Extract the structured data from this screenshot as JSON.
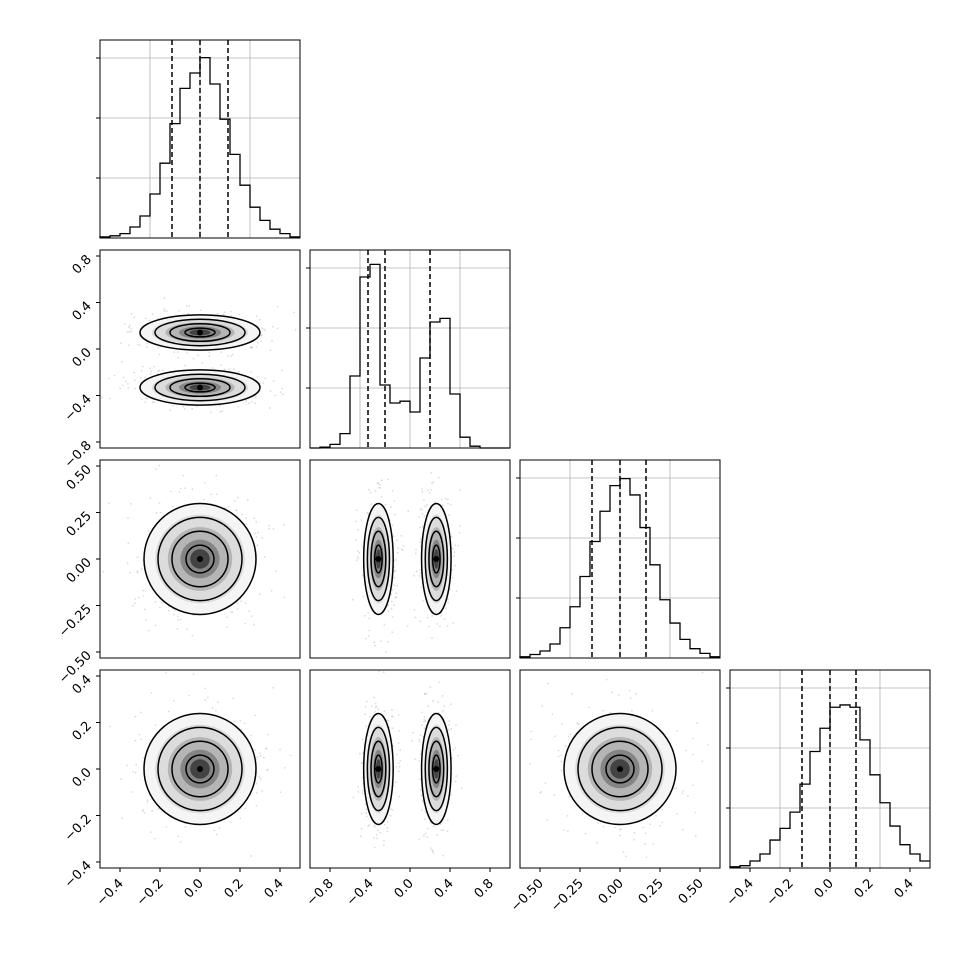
{
  "figure": {
    "background": "#ffffff",
    "grid_color": "#b0b0b0",
    "line_color": "#000000"
  },
  "chart_data": [
    {
      "type": "histogram",
      "panel": "diag-0",
      "bins": [
        -0.5,
        -0.45,
        -0.4,
        -0.35,
        -0.3,
        -0.25,
        -0.2,
        -0.15,
        -0.1,
        -0.05,
        0.0,
        0.05,
        0.1,
        0.15,
        0.2,
        0.25,
        0.3,
        0.35,
        0.4,
        0.45,
        0.5
      ],
      "counts": [
        0.5,
        1,
        2,
        5,
        10,
        20,
        34,
        52,
        68,
        75,
        82,
        70,
        54,
        38,
        24,
        14,
        8,
        4,
        2,
        0.5
      ],
      "ylim": [
        0,
        90
      ],
      "quantile_lines": [
        -0.14,
        0.0,
        0.14
      ],
      "grid": true
    },
    {
      "type": "histogram",
      "panel": "diag-1",
      "bins": [
        -1.1,
        -1.0,
        -0.9,
        -0.8,
        -0.7,
        -0.6,
        -0.5,
        -0.4,
        -0.3,
        -0.2,
        -0.1,
        0.0,
        0.1,
        0.2,
        0.3,
        0.4,
        0.5,
        0.6,
        0.7,
        0.8,
        0.9
      ],
      "counts": [
        0,
        0.5,
        2,
        8,
        40,
        95,
        102,
        35,
        25,
        26,
        20,
        50,
        70,
        72,
        30,
        6,
        1,
        0,
        0,
        0
      ],
      "ylim": [
        0,
        110
      ],
      "quantile_lines": [
        -0.52,
        -0.35,
        0.1
      ],
      "grid": true
    },
    {
      "type": "histogram",
      "panel": "diag-2",
      "bins": [
        -0.5,
        -0.45,
        -0.4,
        -0.35,
        -0.3,
        -0.25,
        -0.2,
        -0.15,
        -0.1,
        -0.05,
        0.0,
        0.05,
        0.1,
        0.15,
        0.2,
        0.25,
        0.3,
        0.35,
        0.4,
        0.45,
        0.5
      ],
      "counts": [
        0.5,
        1.5,
        3,
        6,
        13,
        22,
        35,
        50,
        63,
        74,
        77,
        70,
        56,
        40,
        25,
        15,
        8,
        4,
        2,
        0.5
      ],
      "ylim": [
        0,
        85
      ],
      "quantile_lines": [
        -0.14,
        0.0,
        0.13
      ],
      "grid": true
    },
    {
      "type": "histogram",
      "panel": "diag-3",
      "bins": [
        -0.5,
        -0.45,
        -0.4,
        -0.35,
        -0.3,
        -0.25,
        -0.2,
        -0.15,
        -0.1,
        -0.05,
        0.0,
        0.05,
        0.1,
        0.15,
        0.2,
        0.25,
        0.3,
        0.35,
        0.4,
        0.45,
        0.5
      ],
      "counts": [
        0.5,
        1,
        3,
        6,
        12,
        17,
        24,
        36,
        50,
        60,
        69,
        70,
        69,
        55,
        40,
        28,
        18,
        10,
        6,
        3
      ],
      "ylim": [
        0,
        85
      ],
      "quantile_lines": [
        -0.14,
        0.0,
        0.13
      ],
      "grid": true
    },
    {
      "type": "contour",
      "panel": "p10",
      "x_mean": 0.0,
      "y_means": [
        0.05,
        -0.45
      ],
      "sx": 0.15,
      "sy": 0.08,
      "xlim": [
        -0.5,
        0.5
      ],
      "ylim": [
        -1.0,
        0.8
      ]
    },
    {
      "type": "contour",
      "panel": "p20",
      "x_mean": 0.0,
      "y_mean": 0.0,
      "sx": 0.14,
      "sy": 0.14,
      "xlim": [
        -0.5,
        0.5
      ],
      "ylim": [
        -0.5,
        0.5
      ]
    },
    {
      "type": "contour",
      "panel": "p21",
      "x_means": [
        -0.45,
        0.1
      ],
      "y_mean": 0.0,
      "sx": 0.07,
      "sy": 0.14,
      "xlim": [
        -1.1,
        0.8
      ],
      "ylim": [
        -0.5,
        0.5
      ]
    },
    {
      "type": "contour",
      "panel": "p30",
      "x_mean": 0.0,
      "y_mean": 0.0,
      "sx": 0.14,
      "sy": 0.14,
      "xlim": [
        -0.5,
        0.5
      ],
      "ylim": [
        -0.5,
        0.5
      ]
    },
    {
      "type": "contour",
      "panel": "p31",
      "x_means": [
        -0.45,
        0.1
      ],
      "y_mean": 0.0,
      "sx": 0.07,
      "sy": 0.14,
      "xlim": [
        -1.1,
        0.8
      ],
      "ylim": [
        -0.5,
        0.5
      ]
    },
    {
      "type": "contour",
      "panel": "p32",
      "x_mean": 0.0,
      "y_mean": 0.0,
      "sx": 0.14,
      "sy": 0.14,
      "xlim": [
        -0.5,
        0.5
      ],
      "ylim": [
        -0.5,
        0.5
      ]
    }
  ],
  "axes": {
    "row1_y_ticks": [
      "0.8",
      "0.4",
      "0.0",
      "−0.4",
      "−0.8"
    ],
    "row2_y_ticks": [
      "0.50",
      "0.25",
      "0.00",
      "−0.25",
      "−0.50"
    ],
    "row3_y_ticks": [
      "0.4",
      "0.2",
      "0.0",
      "−0.2",
      "−0.4"
    ],
    "col0_x_ticks": [
      "−0.4",
      "−0.2",
      "0.0",
      "0.2",
      "0.4"
    ],
    "col1_x_ticks": [
      "−0.8",
      "−0.4",
      "0.0",
      "0.4",
      "0.8"
    ],
    "col2_x_ticks": [
      "−0.50",
      "−0.25",
      "0.00",
      "0.25",
      "0.50"
    ],
    "col3_x_ticks": [
      "−0.4",
      "−0.2",
      "0.0",
      "0.2",
      "0.4"
    ]
  }
}
